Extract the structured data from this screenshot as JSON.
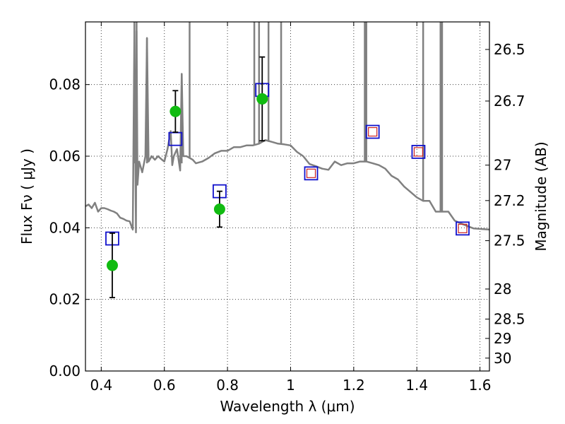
{
  "chart_data": {
    "type": "scatter",
    "xlabel": "Wavelength  λ (μm)",
    "ylabel": "Flux  Fν  ( μJy )",
    "ylabel_right": "Magnitude (AB)",
    "xlim": [
      0.35,
      1.63
    ],
    "ylim": [
      0.0,
      0.0975
    ],
    "x_ticks": [
      0.4,
      0.6,
      0.8,
      1.0,
      1.2,
      1.4,
      1.6
    ],
    "x_tick_labels": [
      "0.4",
      "0.6",
      "0.8",
      "1",
      "1.2",
      "1.4",
      "1.6"
    ],
    "y_ticks": [
      0.0,
      0.02,
      0.04,
      0.06,
      0.08
    ],
    "y_tick_labels": [
      "0.00",
      "0.02",
      "0.04",
      "0.06",
      "0.08"
    ],
    "right_ticks": [
      {
        "label": "26.5",
        "flux": 0.0898
      },
      {
        "label": "26.7",
        "flux": 0.0754
      },
      {
        "label": "27",
        "flux": 0.0575
      },
      {
        "label": "27.2",
        "flux": 0.0476
      },
      {
        "label": "27.5",
        "flux": 0.0364
      },
      {
        "label": "28",
        "flux": 0.0229
      },
      {
        "label": "28.5",
        "flux": 0.0145
      },
      {
        "label": "29",
        "flux": 0.0091
      },
      {
        "label": "30",
        "flux": 0.0036
      }
    ],
    "grid": true,
    "colors": {
      "observed": "#11bb11",
      "model_box": "#1111cc",
      "model_box_inner": "#cc2222",
      "spectrum": "#808080",
      "error_bar": "#000000"
    },
    "series": [
      {
        "kind": "observed",
        "x": [
          0.435,
          0.635,
          0.775,
          0.91
        ],
        "y": [
          0.0295,
          0.0725,
          0.0452,
          0.076
        ],
        "yerr": [
          0.009,
          0.0058,
          0.005,
          0.0117
        ]
      },
      {
        "kind": "model",
        "x": [
          0.435,
          0.635,
          0.775,
          0.91,
          1.065,
          1.26,
          1.405,
          1.545
        ],
        "y": [
          0.037,
          0.0648,
          0.0502,
          0.0785,
          0.0552,
          0.0668,
          0.0612,
          0.0398
        ],
        "inner": [
          false,
          false,
          false,
          false,
          true,
          true,
          true,
          true
        ]
      },
      {
        "kind": "spectrum",
        "x": [
          0.35,
          0.36,
          0.37,
          0.38,
          0.39,
          0.4,
          0.41,
          0.42,
          0.43,
          0.44,
          0.45,
          0.46,
          0.47,
          0.48,
          0.49,
          0.5,
          0.505,
          0.51,
          0.512,
          0.515,
          0.52,
          0.53,
          0.54,
          0.545,
          0.55,
          0.56,
          0.57,
          0.58,
          0.59,
          0.6,
          0.61,
          0.62,
          0.625,
          0.63,
          0.64,
          0.65,
          0.655,
          0.66,
          0.67,
          0.68,
          0.69,
          0.7,
          0.72,
          0.74,
          0.76,
          0.78,
          0.8,
          0.82,
          0.84,
          0.86,
          0.88,
          0.9,
          0.92,
          0.94,
          0.96,
          0.98,
          1.0,
          1.02,
          1.04,
          1.06,
          1.08,
          1.1,
          1.12,
          1.14,
          1.16,
          1.18,
          1.2,
          1.22,
          1.24,
          1.26,
          1.28,
          1.3,
          1.32,
          1.34,
          1.36,
          1.38,
          1.4,
          1.42,
          1.44,
          1.46,
          1.48,
          1.5,
          1.52,
          1.54,
          1.56,
          1.58,
          1.6,
          1.63
        ],
        "y": [
          0.046,
          0.0465,
          0.0455,
          0.047,
          0.0445,
          0.0455,
          0.0455,
          0.0452,
          0.0448,
          0.0445,
          0.044,
          0.0428,
          0.0425,
          0.042,
          0.0418,
          0.0395,
          0.095,
          0.0387,
          0.095,
          0.052,
          0.0585,
          0.0555,
          0.06,
          0.093,
          0.0585,
          0.06,
          0.059,
          0.06,
          0.0592,
          0.0585,
          0.062,
          0.067,
          0.0575,
          0.06,
          0.062,
          0.056,
          0.083,
          0.06,
          0.06,
          0.0595,
          0.059,
          0.058,
          0.0585,
          0.0595,
          0.0608,
          0.0615,
          0.0615,
          0.0625,
          0.0625,
          0.063,
          0.063,
          0.0635,
          0.0645,
          0.064,
          0.0635,
          0.0633,
          0.063,
          0.0612,
          0.06,
          0.0578,
          0.0572,
          0.0565,
          0.0562,
          0.0585,
          0.0575,
          0.058,
          0.058,
          0.0585,
          0.0585,
          0.058,
          0.0575,
          0.0565,
          0.0545,
          0.0535,
          0.0515,
          0.05,
          0.0485,
          0.0475,
          0.0475,
          0.0445,
          0.0445,
          0.0445,
          0.042,
          0.0412,
          0.0405,
          0.0398,
          0.0397,
          0.0395
        ],
        "peaks": [
          {
            "x": 0.505,
            "y": 0.0975
          },
          {
            "x": 0.512,
            "y": 0.0975
          },
          {
            "x": 0.545,
            "y": 0.093
          },
          {
            "x": 0.655,
            "y": 0.083
          },
          {
            "x": 0.68,
            "y": 0.0975
          },
          {
            "x": 0.885,
            "y": 0.0975
          },
          {
            "x": 0.9,
            "y": 0.0975
          },
          {
            "x": 0.93,
            "y": 0.0975
          },
          {
            "x": 0.97,
            "y": 0.0975
          },
          {
            "x": 1.235,
            "y": 0.0975
          },
          {
            "x": 1.24,
            "y": 0.0975
          },
          {
            "x": 1.42,
            "y": 0.0975
          },
          {
            "x": 1.475,
            "y": 0.0975
          },
          {
            "x": 1.48,
            "y": 0.0975
          }
        ]
      }
    ]
  }
}
